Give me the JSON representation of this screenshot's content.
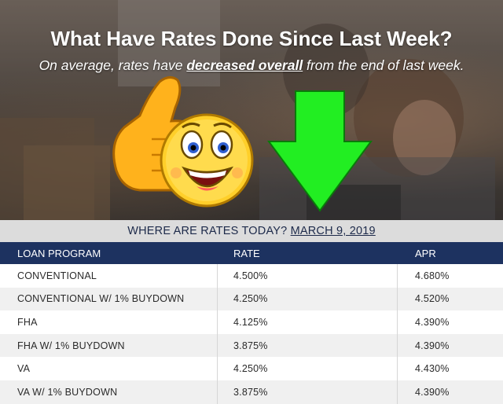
{
  "hero": {
    "headline": "What Have Rates Done Since Last Week?",
    "subline_before": "On average, rates have ",
    "subline_emphasis": "decreased overall",
    "subline_after": " from the end of last week."
  },
  "banner": {
    "label": "WHERE ARE RATES TODAY? ",
    "date": "MARCH 9, 2019"
  },
  "table": {
    "headers": [
      "LOAN PROGRAM",
      "RATE",
      "APR"
    ],
    "rows": [
      {
        "program": "CONVENTIONAL",
        "rate": "4.500%",
        "apr": "4.680%"
      },
      {
        "program": "CONVENTIONAL W/ 1% BUYDOWN",
        "rate": "4.250%",
        "apr": "4.520%"
      },
      {
        "program": "FHA",
        "rate": "4.125%",
        "apr": "4.390%"
      },
      {
        "program": "FHA W/ 1% BUYDOWN",
        "rate": "3.875%",
        "apr": "4.390%"
      },
      {
        "program": "VA",
        "rate": "4.250%",
        "apr": "4.430%"
      },
      {
        "program": "VA W/ 1% BUYDOWN",
        "rate": "3.875%",
        "apr": "4.390%"
      }
    ]
  },
  "colors": {
    "header_bg": "#1d3260",
    "banner_bg": "#dcdcdc",
    "arrow": "#22ee22",
    "emoji": "#ffcc22"
  },
  "icons": [
    "thumbs-up-emoji-icon",
    "down-arrow-icon"
  ]
}
